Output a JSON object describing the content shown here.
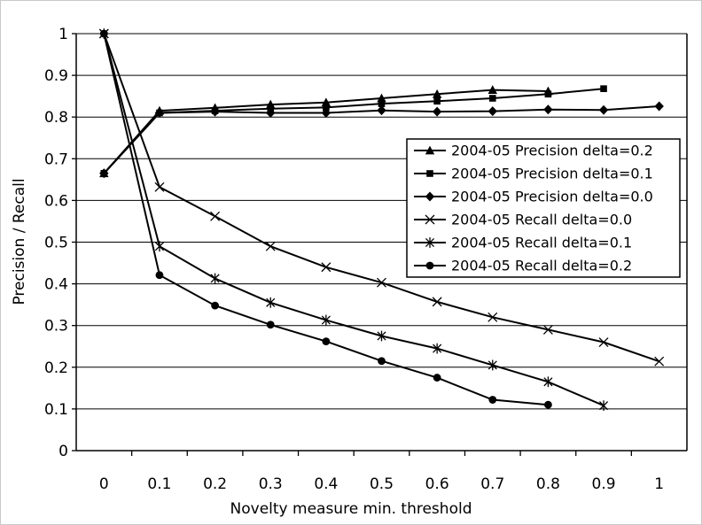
{
  "chart_data": {
    "type": "line",
    "title": "",
    "xlabel": "Novelty measure min. threshold",
    "ylabel": "Precision / Recall",
    "x": [
      0,
      0.1,
      0.2,
      0.3,
      0.4,
      0.5,
      0.6,
      0.7,
      0.8,
      0.9,
      1
    ],
    "x_tick_labels": [
      "0",
      "0.1",
      "0.2",
      "0.3",
      "0.4",
      "0.5",
      "0.6",
      "0.7",
      "0.8",
      "0.9",
      "1"
    ],
    "y_tick_labels": [
      "0",
      "0.1",
      "0.2",
      "0.3",
      "0.4",
      "0.5",
      "0.6",
      "0.7",
      "0.8",
      "0.9",
      "1"
    ],
    "ylim": [
      0,
      1
    ],
    "y_tick_step": 0.1,
    "grid": "horizontal",
    "legend_position": "inside-upper-right",
    "line_color": "#000000",
    "background_color": "#ffffff",
    "series": [
      {
        "name": "2004-05 Precision delta=0.2",
        "marker": "triangle",
        "values": [
          0.665,
          0.815,
          0.822,
          0.83,
          0.835,
          0.845,
          0.855,
          0.865,
          0.862,
          null,
          null
        ]
      },
      {
        "name": "2004-05 Precision delta=0.1",
        "marker": "square",
        "values": [
          0.665,
          0.81,
          0.815,
          0.82,
          0.823,
          0.832,
          0.838,
          0.845,
          0.855,
          0.868,
          null
        ]
      },
      {
        "name": "2004-05 Precision delta=0.0",
        "marker": "diamond",
        "values": [
          0.665,
          0.81,
          0.813,
          0.81,
          0.81,
          0.816,
          0.813,
          0.814,
          0.818,
          0.817,
          0.826
        ]
      },
      {
        "name": "2004-05 Recall delta=0.0",
        "marker": "x",
        "values": [
          1.0,
          0.632,
          0.562,
          0.49,
          0.44,
          0.403,
          0.357,
          0.32,
          0.29,
          0.26,
          0.214
        ]
      },
      {
        "name": "2004-05 Recall delta=0.1",
        "marker": "asterisk",
        "values": [
          1.0,
          0.49,
          0.413,
          0.355,
          0.313,
          0.275,
          0.245,
          0.205,
          0.165,
          0.108,
          null
        ]
      },
      {
        "name": "2004-05 Recall delta=0.2",
        "marker": "circle",
        "values": [
          1.0,
          0.421,
          0.348,
          0.302,
          0.262,
          0.215,
          0.175,
          0.122,
          0.11,
          null,
          null
        ]
      }
    ]
  }
}
